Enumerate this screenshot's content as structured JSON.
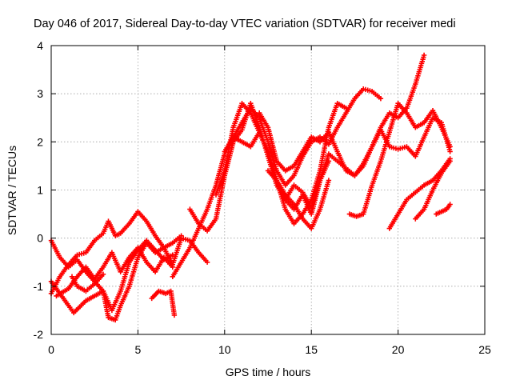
{
  "chart_data": {
    "type": "scatter",
    "title": "Day 046 of 2017, Sidereal Day-to-day VTEC variation (SDTVAR) for receiver medi",
    "xlabel": "GPS time / hours",
    "ylabel": "SDTVAR / TECUs",
    "xlim": [
      0,
      25
    ],
    "ylim": [
      -2,
      4
    ],
    "xticks": [
      "0",
      "5",
      "10",
      "15",
      "20",
      "25"
    ],
    "yticks": [
      "-2",
      "-1",
      "0",
      "1",
      "2",
      "3",
      "4"
    ],
    "grid": true,
    "marker": "+",
    "color": "#ff0000",
    "series": [
      {
        "x": [
          0,
          0.5,
          1,
          1.5,
          2,
          2.5,
          3,
          3.3,
          3.7,
          4,
          4.5,
          5,
          5.5,
          6,
          6.5,
          7,
          7.5
        ],
        "y": [
          -1.15,
          -0.8,
          -0.55,
          -0.35,
          -0.3,
          -0.05,
          0.1,
          0.35,
          0.05,
          0.1,
          0.3,
          0.55,
          0.35,
          0.05,
          -0.2,
          -0.1,
          0.05
        ]
      },
      {
        "x": [
          0,
          0.5,
          1,
          1.5,
          2,
          2.5,
          3,
          3.3,
          3.7,
          4,
          4.5,
          5,
          5.5,
          6,
          6.5,
          7,
          7.5,
          8,
          8.5,
          9
        ],
        "y": [
          -0.05,
          -0.4,
          -0.6,
          -0.45,
          -0.7,
          -0.9,
          -1.1,
          -1.65,
          -1.7,
          -1.4,
          -1.0,
          -0.4,
          -0.1,
          -0.3,
          -0.2,
          -0.55,
          0.0,
          -0.05,
          -0.3,
          -0.5
        ]
      },
      {
        "x": [
          0,
          0.5,
          1,
          1.3,
          2,
          3,
          3.5,
          4,
          4.5,
          5,
          5.5,
          6,
          6.5,
          7
        ],
        "y": [
          -0.9,
          -1.15,
          -1.4,
          -1.55,
          -1.3,
          -1.1,
          -1.5,
          -1.1,
          -0.5,
          -0.25,
          -0.05,
          -0.25,
          -0.45,
          -0.35
        ]
      },
      {
        "x": [
          0.3,
          1,
          1.5,
          2,
          2.5,
          3,
          3.5,
          4,
          4.5,
          5,
          5.5,
          6,
          6.5,
          7
        ],
        "y": [
          -1.2,
          -1.05,
          -0.8,
          -0.6,
          -0.85,
          -0.6,
          -0.3,
          -0.7,
          -0.4,
          -0.2,
          -0.5,
          -0.7,
          -0.4,
          -0.6
        ]
      },
      {
        "x": [
          1.2,
          1.5,
          2,
          2.5,
          3
        ],
        "y": [
          -0.8,
          -1.0,
          -1.1,
          -0.95,
          -0.75
        ]
      },
      {
        "x": [
          5.8,
          6.2,
          6.6,
          6.9,
          7.1
        ],
        "y": [
          -1.25,
          -1.1,
          -1.15,
          -1.1,
          -1.6
        ]
      },
      {
        "x": [
          7,
          7.5,
          8,
          8.5,
          9,
          9.5,
          10,
          10.5,
          11,
          11.5,
          12,
          12.5,
          13,
          13.5,
          14,
          14.5,
          15,
          15.5,
          16,
          16.5,
          17,
          17.5,
          18,
          18.5,
          19
        ],
        "y": [
          -0.8,
          -0.5,
          -0.2,
          0.2,
          0.6,
          1.1,
          1.75,
          2.1,
          2.4,
          2.7,
          2.5,
          2.0,
          1.4,
          1.1,
          1.3,
          1.7,
          2.0,
          2.1,
          1.95,
          2.3,
          2.6,
          2.9,
          3.1,
          3.05,
          2.9
        ]
      },
      {
        "x": [
          8,
          8.5,
          9,
          9.5,
          10,
          10.5,
          11,
          11.5,
          12,
          12.5,
          13,
          13.5,
          14,
          14.5,
          15,
          15.5,
          16,
          16.5,
          17,
          17.5,
          18,
          18.5,
          19,
          19.5,
          20,
          20.5,
          21,
          21.5,
          22,
          22.5,
          23
        ],
        "y": [
          0.6,
          0.3,
          0.15,
          0.4,
          1.3,
          2.0,
          2.25,
          2.8,
          2.3,
          1.7,
          1.1,
          0.8,
          1.1,
          0.95,
          0.65,
          1.2,
          1.75,
          1.6,
          1.45,
          1.3,
          1.55,
          1.9,
          2.25,
          1.9,
          1.85,
          1.9,
          1.7,
          2.1,
          2.5,
          2.4,
          1.8
        ]
      },
      {
        "x": [
          9.5,
          10,
          10.5,
          11,
          11.5,
          12,
          12.5,
          13,
          13.5,
          14,
          14.5,
          15,
          15.5,
          16,
          16.5,
          17
        ],
        "y": [
          0.9,
          1.4,
          2.3,
          2.8,
          2.6,
          2.2,
          1.8,
          1.2,
          0.6,
          0.3,
          0.5,
          0.8,
          1.4,
          2.3,
          2.8,
          2.7
        ]
      },
      {
        "x": [
          10,
          10.5,
          11,
          11.5,
          12,
          12.5,
          13,
          13.5,
          14,
          14.5,
          15,
          15.5,
          16
        ],
        "y": [
          1.8,
          2.1,
          2.0,
          1.9,
          2.2,
          1.8,
          1.2,
          0.9,
          0.7,
          0.4,
          0.2,
          0.6,
          1.2
        ]
      },
      {
        "x": [
          12,
          12.5,
          13,
          13.5,
          14,
          14.5,
          15,
          15.5,
          16,
          16.5,
          17,
          17.5,
          18,
          18.5,
          19,
          19.5,
          20,
          20.5,
          21,
          21.5
        ],
        "y": [
          2.6,
          2.3,
          1.6,
          1.4,
          1.5,
          1.8,
          2.1,
          2.0,
          2.2,
          1.8,
          1.4,
          1.3,
          1.5,
          1.9,
          2.3,
          2.6,
          2.5,
          2.7,
          3.2,
          3.8
        ]
      },
      {
        "x": [
          12.5,
          13,
          13.5,
          14,
          14.5,
          15,
          15.5,
          16
        ],
        "y": [
          1.4,
          1.2,
          0.8,
          0.6,
          0.9,
          0.5,
          1.2,
          1.6
        ]
      },
      {
        "x": [
          17.2,
          17.6,
          18,
          18.5,
          19,
          19.5,
          20,
          20.5,
          21,
          21.5,
          22,
          22.5,
          23
        ],
        "y": [
          0.5,
          0.45,
          0.5,
          1.1,
          1.6,
          2.2,
          2.8,
          2.6,
          2.3,
          2.4,
          2.65,
          2.3,
          1.9
        ]
      },
      {
        "x": [
          19.5,
          20,
          20.5,
          21,
          21.5,
          22,
          22.5,
          23
        ],
        "y": [
          0.2,
          0.5,
          0.8,
          0.95,
          1.1,
          1.2,
          1.4,
          1.65
        ]
      },
      {
        "x": [
          21,
          21.5,
          22,
          22.5,
          23
        ],
        "y": [
          0.4,
          0.6,
          1.0,
          1.35,
          1.6
        ]
      },
      {
        "x": [
          22.2,
          22.5,
          22.8,
          23
        ],
        "y": [
          0.5,
          0.55,
          0.6,
          0.7
        ]
      }
    ]
  }
}
